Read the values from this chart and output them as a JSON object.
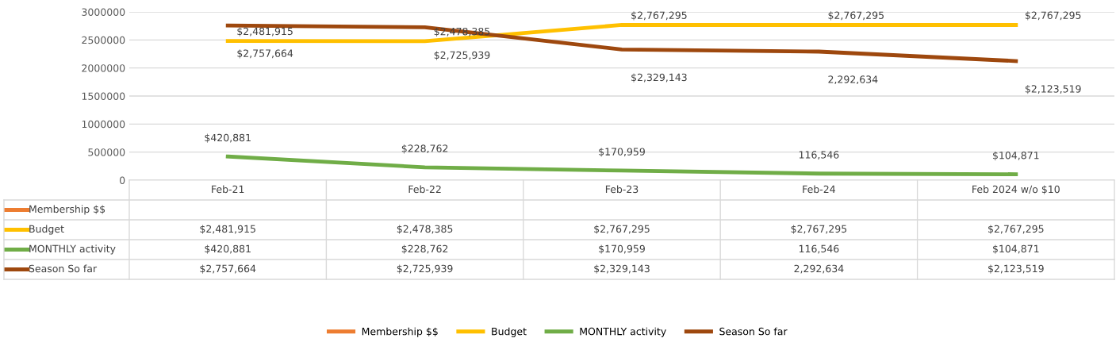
{
  "chart_data": {
    "type": "line",
    "categories": [
      "Feb-21",
      "Feb-22",
      "Feb-23",
      "Feb-24",
      "Feb 2024 w/o $10"
    ],
    "series": [
      {
        "name": "Membership $$",
        "color": "#ed7d31",
        "values": [
          null,
          null,
          null,
          null,
          null
        ],
        "value_labels": [
          null,
          null,
          null,
          null,
          null
        ]
      },
      {
        "name": "Budget",
        "color": "#ffc000",
        "values": [
          2481915,
          2478385,
          2767295,
          2767295,
          2767295
        ],
        "value_labels": [
          "$2,481,915",
          "$2,478,385",
          "$2,767,295",
          "$2,767,295",
          "$2,767,295"
        ]
      },
      {
        "name": "MONTHLY activity",
        "color": "#70ad47",
        "values": [
          420881,
          228762,
          170959,
          116546,
          104871
        ],
        "value_labels": [
          "$420,881",
          "$228,762",
          "$170,959",
          "116,546",
          "$104,871"
        ]
      },
      {
        "name": "Season So far",
        "color": "#9e480e",
        "values": [
          2757664,
          2725939,
          2329143,
          2292634,
          2123519
        ],
        "value_labels": [
          "$2,757,664",
          "$2,725,939",
          "$2,329,143",
          "2,292,634",
          "$2,123,519"
        ]
      }
    ],
    "ylim": [
      0,
      3000000
    ],
    "yticks": [
      0,
      500000,
      1000000,
      1500000,
      2000000,
      2500000,
      3000000
    ],
    "grid": "y",
    "legend": "bottom",
    "marker": "none",
    "line_style": "solid"
  }
}
